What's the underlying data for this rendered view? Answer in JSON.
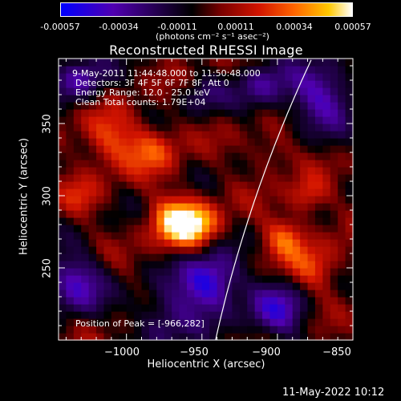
{
  "colorbar": {
    "ticks": [
      "-0.00057",
      "-0.00034",
      "-0.00011",
      "0.00011",
      "0.00034",
      "0.00057"
    ],
    "units": "(photons cm⁻² s⁻¹ asec⁻²)"
  },
  "chart_data": {
    "type": "heatmap",
    "title": "Reconstructed RHESSI Image",
    "xlabel": "Heliocentric X (arcsec)",
    "ylabel": "Heliocentric Y (arcsec)",
    "xlim": [
      -1045,
      -850
    ],
    "ylim": [
      200,
      395
    ],
    "xticks": [
      "−1000",
      "−950",
      "−900",
      "−850"
    ],
    "xtick_values": [
      -1000,
      -950,
      -900,
      -850
    ],
    "yticks": [
      "250",
      "300",
      "350"
    ],
    "ytick_values": [
      250,
      300,
      350
    ],
    "clim": [
      -0.00057,
      0.00057
    ],
    "peak": [
      -966,
      282
    ],
    "annotations": {
      "time": "9-May-2011 11:44:48.000 to 11:50:48.000",
      "detectors": "Detectors: 3F 4F 5F 6F 7F 8F, Att 0",
      "energy": "Energy Range: 12.0 - 25.0 keV",
      "clean": "Clean     Total counts: 1.79E+04",
      "peak_text": "Position of Peak = [-966,282]"
    },
    "limb_color": "#ffffff"
  },
  "footer": {
    "timestamp": "11-May-2022 10:12"
  }
}
